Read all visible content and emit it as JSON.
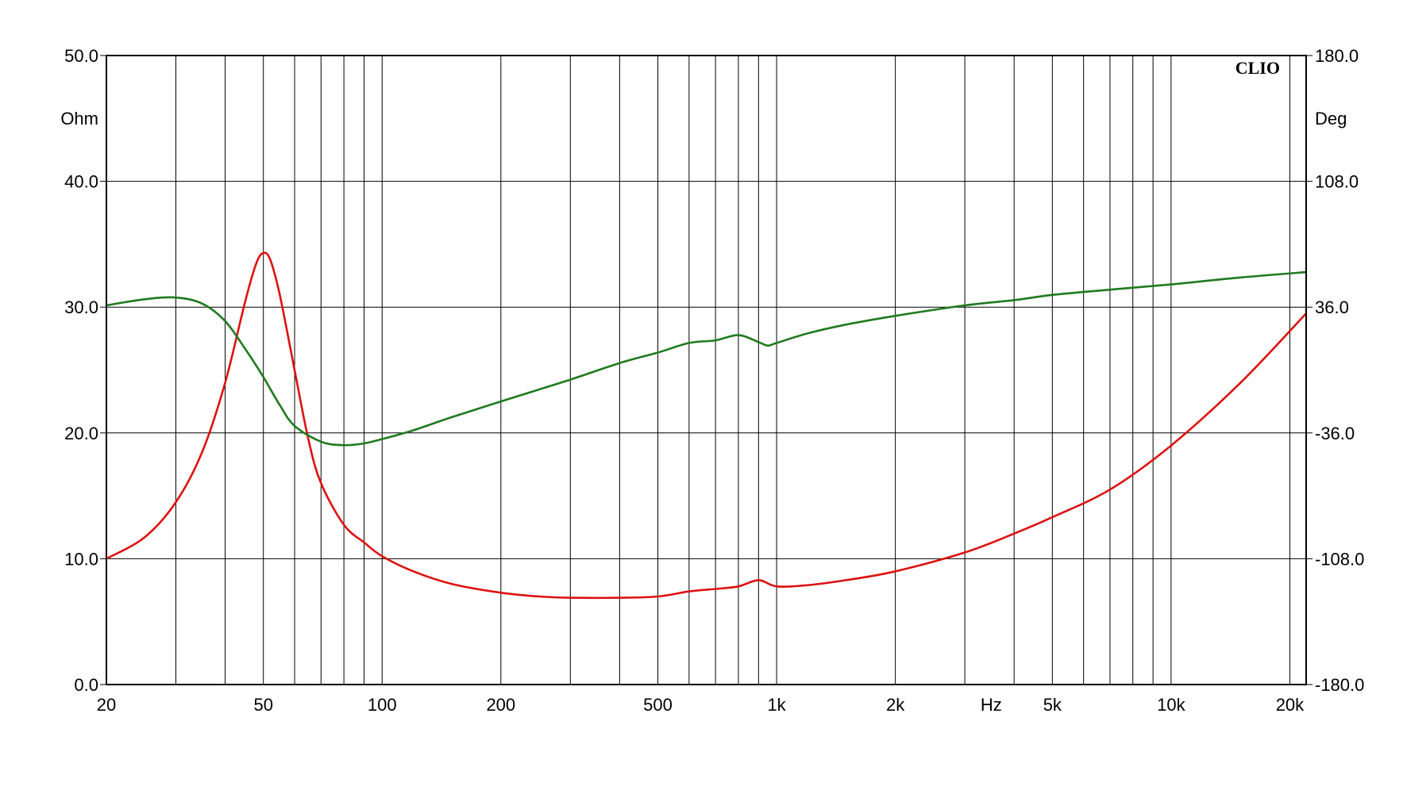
{
  "chart_data": {
    "type": "line",
    "brand": "CLIO",
    "xlabel": "Hz",
    "x_scale": "log",
    "xlim": [
      20,
      22000
    ],
    "x_ticks": [
      20,
      50,
      100,
      200,
      500,
      1000,
      2000,
      5000,
      10000,
      20000
    ],
    "x_tick_labels": [
      "20",
      "50",
      "100",
      "200",
      "500",
      "1k",
      "2k",
      "5k",
      "10k",
      "20k"
    ],
    "x_minor": [
      30,
      40,
      60,
      70,
      80,
      90,
      300,
      400,
      600,
      700,
      800,
      900,
      3000,
      4000,
      6000,
      7000,
      8000,
      9000
    ],
    "y_left": {
      "unit": "Ohm",
      "ylim": [
        0,
        50
      ],
      "ticks": [
        0,
        10,
        20,
        30,
        40,
        50
      ],
      "tick_labels": [
        "0.0",
        "10.0",
        "20.0",
        "30.0",
        "40.0",
        "50.0"
      ]
    },
    "y_right": {
      "unit": "Deg",
      "ylim": [
        -180,
        180
      ],
      "ticks": [
        -180,
        -108,
        -36,
        36,
        108,
        180
      ],
      "tick_labels": [
        "-180.0",
        "-108.0",
        "-36.0",
        "36.0",
        "108.0",
        "180.0"
      ]
    },
    "grid": true,
    "series": [
      {
        "color": "#dd1111",
        "axis": "left",
        "points": [
          [
            20,
            10.0
          ],
          [
            25,
            11.7
          ],
          [
            30,
            14.5
          ],
          [
            35,
            18.5
          ],
          [
            40,
            24.0
          ],
          [
            45,
            30.5
          ],
          [
            48,
            33.5
          ],
          [
            50,
            34.3
          ],
          [
            52,
            33.8
          ],
          [
            55,
            31.0
          ],
          [
            60,
            25.0
          ],
          [
            65,
            19.5
          ],
          [
            70,
            16.0
          ],
          [
            80,
            12.7
          ],
          [
            90,
            11.3
          ],
          [
            100,
            10.2
          ],
          [
            120,
            9.0
          ],
          [
            150,
            8.0
          ],
          [
            200,
            7.3
          ],
          [
            250,
            7.0
          ],
          [
            300,
            6.9
          ],
          [
            400,
            6.9
          ],
          [
            500,
            7.0
          ],
          [
            600,
            7.4
          ],
          [
            700,
            7.6
          ],
          [
            800,
            7.8
          ],
          [
            900,
            8.3
          ],
          [
            1000,
            7.8
          ],
          [
            1200,
            7.9
          ],
          [
            1500,
            8.3
          ],
          [
            2000,
            9.0
          ],
          [
            3000,
            10.5
          ],
          [
            4000,
            12.0
          ],
          [
            5000,
            13.3
          ],
          [
            7000,
            15.5
          ],
          [
            10000,
            19.0
          ],
          [
            15000,
            24.0
          ],
          [
            22000,
            29.5
          ]
        ]
      },
      {
        "color": "#1f7a1f",
        "axis": "right",
        "points": [
          [
            20,
            37.0
          ],
          [
            25,
            40.5
          ],
          [
            30,
            41.5
          ],
          [
            35,
            38.0
          ],
          [
            40,
            28.0
          ],
          [
            45,
            12.0
          ],
          [
            50,
            -4.0
          ],
          [
            55,
            -20.0
          ],
          [
            60,
            -32.0
          ],
          [
            70,
            -41.0
          ],
          [
            80,
            -43.0
          ],
          [
            90,
            -42.0
          ],
          [
            100,
            -39.5
          ],
          [
            120,
            -34.5
          ],
          [
            150,
            -27.0
          ],
          [
            200,
            -18.0
          ],
          [
            300,
            -5.5
          ],
          [
            400,
            4.0
          ],
          [
            500,
            10.0
          ],
          [
            600,
            15.5
          ],
          [
            700,
            17.0
          ],
          [
            800,
            20.0
          ],
          [
            900,
            16.0
          ],
          [
            950,
            14.0
          ],
          [
            1000,
            15.5
          ],
          [
            1200,
            21.0
          ],
          [
            1500,
            26.0
          ],
          [
            2000,
            31.0
          ],
          [
            3000,
            37.0
          ],
          [
            4000,
            40.0
          ],
          [
            5000,
            43.0
          ],
          [
            7000,
            46.0
          ],
          [
            10000,
            49.0
          ],
          [
            15000,
            53.0
          ],
          [
            22000,
            56.0
          ]
        ]
      }
    ]
  }
}
